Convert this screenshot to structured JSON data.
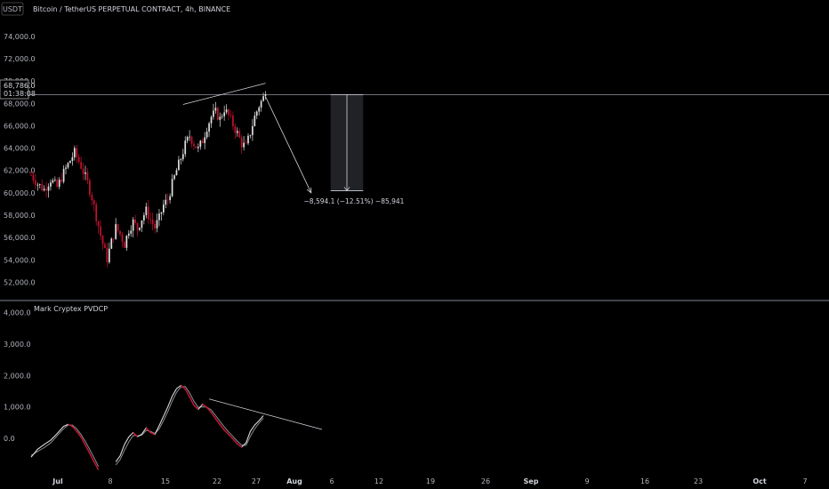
{
  "header": {
    "currency_badge": "USDT",
    "title": "Bitcoin / TetherUS PERPETUAL CONTRACT, 4h, BINANCE"
  },
  "price_tag": {
    "price": "68,786.0",
    "countdown": "01:38:08"
  },
  "measurement": {
    "label": "−8,594.1 (−12.51%) −85,941"
  },
  "indicator": {
    "title": "Mark Cryptex PVDCP"
  },
  "colors": {
    "background": "#000000",
    "candle_up": "#e0e0e0",
    "candle_down": "#c4122f",
    "line_main": "#d9d9d9",
    "divider": "#6a6d78"
  },
  "chart_data": [
    {
      "type": "candlestick",
      "title": "Bitcoin / TetherUS PERPETUAL CONTRACT, 4h, BINANCE",
      "y_ticks": [
        "74,000.0",
        "72,000.0",
        "70,000.0",
        "68,000.0",
        "66,000.0",
        "64,000.0",
        "62,000.0",
        "60,000.0",
        "58,000.0",
        "56,000.0",
        "54,000.0",
        "52,000.0"
      ],
      "y_tick_values": [
        74000,
        72000,
        70000,
        68000,
        66000,
        64000,
        62000,
        60000,
        58000,
        56000,
        54000,
        52000
      ],
      "ylim": [
        51000,
        75500
      ],
      "x_ticks": [
        "Jul",
        "8",
        "15",
        "22",
        "27",
        "Aug",
        "6",
        "12",
        "19",
        "26",
        "Sep",
        "9",
        "16",
        "23",
        "Oct",
        "7"
      ],
      "x_tick_bold": [
        "Jul",
        "Aug",
        "Sep",
        "Oct"
      ],
      "current_price": 68786,
      "trajectory": [
        [
          0,
          61600
        ],
        [
          3,
          60800
        ],
        [
          6,
          60300
        ],
        [
          9,
          61200
        ],
        [
          12,
          60500
        ],
        [
          15,
          61800
        ],
        [
          18,
          62900
        ],
        [
          20,
          63600
        ],
        [
          23,
          62400
        ],
        [
          26,
          60900
        ],
        [
          28,
          59600
        ],
        [
          30,
          57900
        ],
        [
          32,
          56200
        ],
        [
          34,
          54700
        ],
        [
          35,
          54100
        ],
        [
          37,
          55600
        ],
        [
          39,
          56900
        ],
        [
          41,
          56300
        ],
        [
          43,
          55400
        ],
        [
          45,
          56700
        ],
        [
          47,
          57400
        ],
        [
          49,
          56800
        ],
        [
          51,
          57700
        ],
        [
          53,
          58400
        ],
        [
          55,
          57600
        ],
        [
          57,
          56900
        ],
        [
          59,
          57700
        ],
        [
          61,
          58900
        ],
        [
          63,
          59400
        ],
        [
          65,
          60800
        ],
        [
          67,
          62000
        ],
        [
          69,
          63100
        ],
        [
          71,
          64300
        ],
        [
          73,
          65100
        ],
        [
          75,
          64400
        ],
        [
          77,
          63900
        ],
        [
          79,
          64700
        ],
        [
          81,
          65900
        ],
        [
          83,
          66800
        ],
        [
          85,
          67200
        ],
        [
          87,
          66600
        ],
        [
          89,
          67500
        ],
        [
          91,
          66900
        ],
        [
          93,
          66100
        ],
        [
          95,
          65300
        ],
        [
          97,
          64400
        ],
        [
          99,
          64100
        ],
        [
          101,
          65400
        ],
        [
          103,
          66800
        ],
        [
          105,
          67800
        ],
        [
          107,
          68500
        ],
        [
          108,
          68786
        ]
      ],
      "drawings": {
        "trendline": {
          "from": {
            "bar": 70,
            "price": 67900
          },
          "to": {
            "bar": 108,
            "price": 69800
          }
        },
        "projection_arrow": {
          "from": {
            "bar": 108,
            "price": 68600
          },
          "to": {
            "bar": 129,
            "price": 60000
          }
        },
        "measure_box": {
          "bar_start": 138,
          "bar_end": 153,
          "price_top": 68786,
          "price_bottom": 60192
        }
      }
    },
    {
      "type": "line",
      "title": "Mark Cryptex PVDCP",
      "y_ticks": [
        "4,000.0",
        "3,000.0",
        "2,000.0",
        "1,000.0",
        "0.0"
      ],
      "y_tick_values": [
        4000,
        3000,
        2000,
        1000,
        0
      ],
      "ylim": [
        -1050,
        4300
      ],
      "series": [
        {
          "points": [
            [
              0,
              -600
            ],
            [
              3,
              -350
            ],
            [
              6,
              -200
            ],
            [
              9,
              -60
            ],
            [
              12,
              150
            ],
            [
              15,
              380
            ],
            [
              17,
              440
            ],
            [
              19,
              380
            ],
            [
              21,
              220
            ],
            [
              23,
              40
            ],
            [
              25,
              -220
            ],
            [
              27,
              -480
            ],
            [
              29,
              -750
            ],
            [
              31,
              -1000
            ],
            null,
            [
              39,
              -750
            ],
            [
              41,
              -560
            ],
            [
              43,
              -200
            ],
            [
              45,
              40
            ],
            [
              47,
              180
            ],
            [
              49,
              50
            ],
            [
              51,
              130
            ],
            [
              53,
              330
            ],
            [
              55,
              180
            ],
            [
              57,
              120
            ],
            [
              59,
              400
            ],
            [
              61,
              700
            ],
            [
              63,
              1000
            ],
            [
              65,
              1340
            ],
            [
              67,
              1580
            ],
            [
              69,
              1680
            ],
            [
              71,
              1570
            ],
            [
              73,
              1320
            ],
            [
              75,
              1050
            ],
            [
              77,
              920
            ],
            [
              79,
              1080
            ],
            [
              81,
              980
            ],
            [
              83,
              820
            ],
            [
              85,
              620
            ],
            [
              87,
              440
            ],
            [
              89,
              260
            ],
            [
              91,
              120
            ],
            [
              93,
              -20
            ],
            [
              95,
              -180
            ],
            [
              97,
              -280
            ],
            [
              99,
              -150
            ],
            [
              101,
              220
            ],
            [
              103,
              420
            ],
            [
              105,
              560
            ],
            [
              107,
              720
            ]
          ]
        },
        {
          "points": [
            [
              0,
              -550
            ],
            [
              3,
              -420
            ],
            [
              6,
              -300
            ],
            [
              9,
              -150
            ],
            [
              12,
              80
            ],
            [
              15,
              300
            ],
            [
              17,
              420
            ],
            [
              19,
              420
            ],
            [
              21,
              300
            ],
            [
              23,
              120
            ],
            [
              25,
              -100
            ],
            [
              27,
              -360
            ],
            [
              29,
              -620
            ],
            [
              31,
              -900
            ],
            null,
            [
              39,
              -850
            ],
            [
              41,
              -680
            ],
            [
              43,
              -380
            ],
            [
              45,
              -120
            ],
            [
              47,
              90
            ],
            [
              49,
              80
            ],
            [
              51,
              100
            ],
            [
              53,
              250
            ],
            [
              55,
              220
            ],
            [
              57,
              150
            ],
            [
              59,
              300
            ],
            [
              61,
              560
            ],
            [
              63,
              850
            ],
            [
              65,
              1180
            ],
            [
              67,
              1460
            ],
            [
              69,
              1630
            ],
            [
              71,
              1650
            ],
            [
              73,
              1450
            ],
            [
              75,
              1180
            ],
            [
              77,
              980
            ],
            [
              79,
              1000
            ],
            [
              81,
              990
            ],
            [
              83,
              900
            ],
            [
              85,
              720
            ],
            [
              87,
              540
            ],
            [
              89,
              360
            ],
            [
              91,
              200
            ],
            [
              93,
              60
            ],
            [
              95,
              -90
            ],
            [
              97,
              -220
            ],
            [
              99,
              -230
            ],
            [
              101,
              60
            ],
            [
              103,
              300
            ],
            [
              105,
              480
            ],
            [
              107,
              640
            ]
          ]
        }
      ],
      "drawings": {
        "trendline": {
          "from": {
            "bar": 82,
            "price": 1250
          },
          "to": {
            "bar": 134,
            "price": 280
          }
        }
      }
    }
  ]
}
